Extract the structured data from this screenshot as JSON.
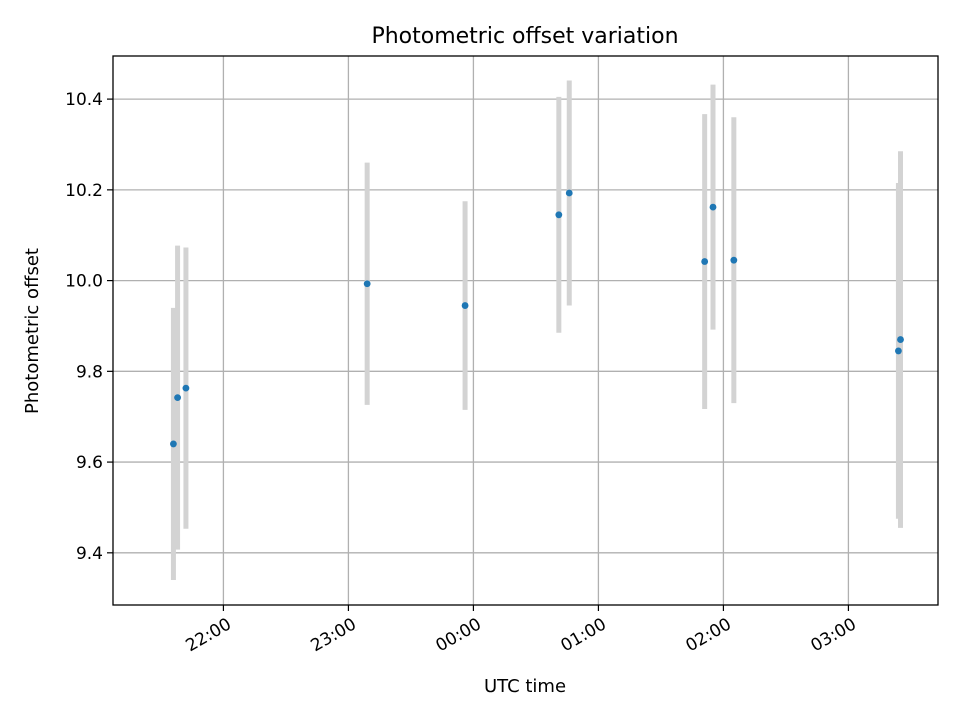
{
  "chart_data": {
    "type": "scatter",
    "title": "Photometric offset variation",
    "xlabel": "UTC time",
    "ylabel": "Photometric offset",
    "grid": true,
    "x_axis_type": "time",
    "xlim": [
      "21:07",
      "03:43"
    ],
    "ylim": [
      9.285,
      10.495
    ],
    "x_ticks": [
      "22:00",
      "23:00",
      "00:00",
      "01:00",
      "02:00",
      "03:00"
    ],
    "y_ticks": [
      "9.4",
      "9.6",
      "9.8",
      "10.0",
      "10.2",
      "10.4"
    ],
    "colors": {
      "point": "#1f77b4",
      "errorbar": "#d3d3d3",
      "grid": "#b0b0b0"
    },
    "series": [
      {
        "points": [
          {
            "x": "21:36",
            "y": 9.64,
            "err": 0.3
          },
          {
            "x": "21:38",
            "y": 9.742,
            "err": 0.335
          },
          {
            "x": "21:42",
            "y": 9.763,
            "err": 0.31
          },
          {
            "x": "23:09",
            "y": 9.993,
            "err": 0.267
          },
          {
            "x": "23:56",
            "y": 9.945,
            "err": 0.23
          },
          {
            "x": "00:41",
            "y": 10.145,
            "err": 0.26
          },
          {
            "x": "00:46",
            "y": 10.193,
            "err": 0.248
          },
          {
            "x": "01:51",
            "y": 10.042,
            "err": 0.325
          },
          {
            "x": "01:55",
            "y": 10.162,
            "err": 0.27
          },
          {
            "x": "02:05",
            "y": 10.045,
            "err": 0.315
          },
          {
            "x": "03:24",
            "y": 9.845,
            "err": 0.37
          },
          {
            "x": "03:25",
            "y": 9.87,
            "err": 0.415
          }
        ]
      }
    ]
  }
}
